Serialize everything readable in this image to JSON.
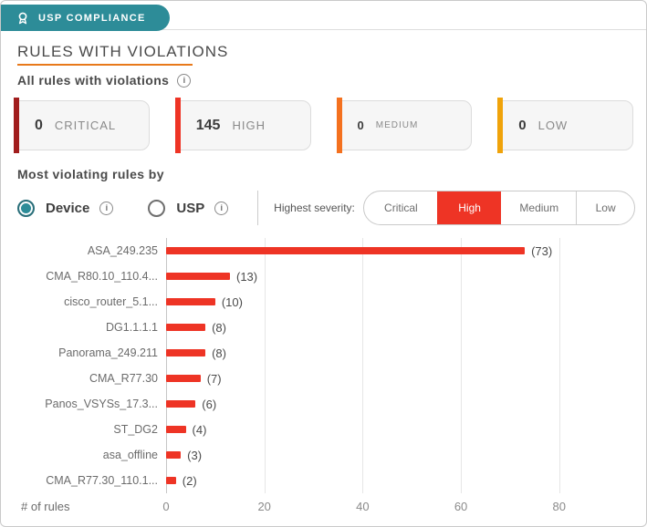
{
  "widget": {
    "tab": {
      "label": "USP COMPLIANCE"
    },
    "title": "RULES WITH VIOLATIONS",
    "subtitle": "All rules with violations",
    "accent_colors": {
      "teal": "#2d8c98",
      "orange_underline": "#e8791b",
      "selected_red": "#ee3425"
    },
    "summary_cards": [
      {
        "count": "0",
        "label": "CRITICAL",
        "stripe_color": "#a11d1d"
      },
      {
        "count": "145",
        "label": "HIGH",
        "stripe_color": "#ee3425"
      },
      {
        "count": "0",
        "label": "MEDIUM",
        "stripe_color": "#f4711f"
      },
      {
        "count": "0",
        "label": "LOW",
        "stripe_color": "#f0a30a"
      }
    ],
    "section_label": "Most violating rules by",
    "group_by_options": [
      {
        "label": "Device",
        "selected": true
      },
      {
        "label": "USP",
        "selected": false
      }
    ],
    "severity_filter": {
      "label": "Highest severity:",
      "selected_color": "#ee3425",
      "options": [
        {
          "label": "Critical",
          "selected": false,
          "width": 84
        },
        {
          "label": "High",
          "selected": true,
          "width": 74
        },
        {
          "label": "Medium",
          "selected": false,
          "width": 86
        },
        {
          "label": "Low",
          "selected": false,
          "width": 67
        }
      ]
    }
  },
  "chart_data": {
    "type": "bar",
    "orientation": "horizontal",
    "title": "",
    "xlabel": "# of rules",
    "ylabel": "",
    "categories": [
      "ASA_249.235",
      "CMA_R80.10_110.4...",
      "cisco_router_5.1...",
      "DG1.1.1.1",
      "Panorama_249.211",
      "CMA_R77.30",
      "Panos_VSYSs_17.3...",
      "ST_DG2",
      "asa_offline",
      "CMA_R77.30_110.1..."
    ],
    "values": [
      73,
      13,
      10,
      8,
      8,
      7,
      6,
      4,
      3,
      2
    ],
    "xticks": [
      0,
      20,
      40,
      60,
      80
    ],
    "xlim": [
      0,
      91
    ],
    "grid": true,
    "bar_color": "#ee3425",
    "legend": null
  }
}
